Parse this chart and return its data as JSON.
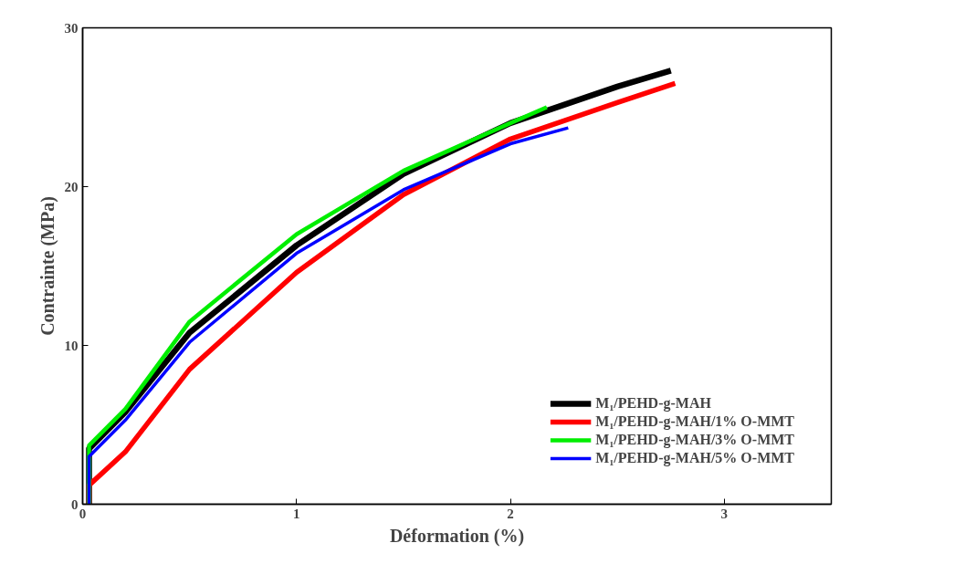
{
  "chart_data": {
    "type": "line",
    "xlabel": "Déformation (%)",
    "ylabel": "Contrainte (MPa)",
    "xlim": [
      0,
      3.5
    ],
    "ylim": [
      0,
      30
    ],
    "xticks": [
      0,
      1,
      2,
      3
    ],
    "yticks": [
      0,
      10,
      20,
      30
    ],
    "grid": false,
    "legend": "bottom right",
    "marker": "none",
    "line_style": "solid",
    "series": [
      {
        "name": "M₁/PEHD-g-MAH",
        "color": "#000000",
        "x": [
          0.03,
          0.03,
          0.2,
          0.5,
          1,
          1.5,
          2,
          2.5,
          2.75
        ],
        "values": [
          0,
          3.5,
          5.8,
          10.8,
          16.3,
          20.8,
          24,
          26.3,
          27.3
        ]
      },
      {
        "name": "M₁/PEHD-g-MAH/1% O-MMT",
        "color": "#ff0000",
        "x": [
          0.03,
          0.03,
          0.2,
          0.5,
          1,
          1.5,
          2,
          2.5,
          2.77
        ],
        "values": [
          0,
          1.2,
          3.3,
          8.5,
          14.6,
          19.5,
          23,
          25.3,
          26.5
        ]
      },
      {
        "name": "M₁/PEHD-g-MAH/3% O-MMT",
        "color": "#00ee00",
        "x": [
          0.03,
          0.03,
          0.2,
          0.5,
          1,
          1.5,
          2,
          2.17
        ],
        "values": [
          0,
          3.7,
          6,
          11.5,
          17,
          21,
          24,
          25
        ]
      },
      {
        "name": "M₁/PEHD-g-MAH/5% O-MMT",
        "color": "#0000ff",
        "x": [
          0.03,
          0.03,
          0.2,
          0.5,
          1,
          1.5,
          2,
          2.27
        ],
        "values": [
          0,
          3,
          5.3,
          10.2,
          15.8,
          19.8,
          22.7,
          23.7
        ]
      }
    ]
  }
}
